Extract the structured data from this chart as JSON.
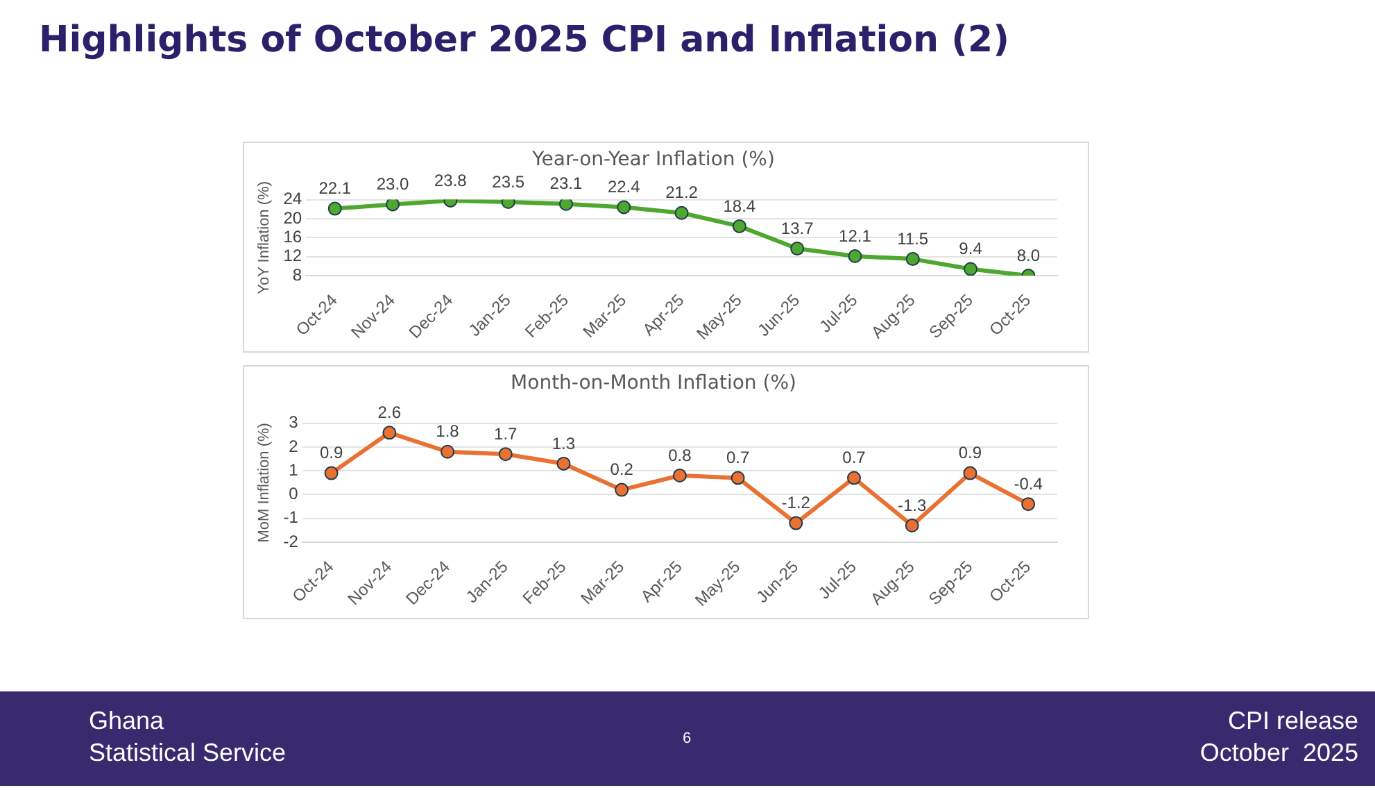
{
  "chart_data": [
    {
      "type": "line",
      "title": "Year-on-Year Inflation (%)",
      "ylabel": "YoY Inflation (%)",
      "categories": [
        "Oct-24",
        "Nov-24",
        "Dec-24",
        "Jan-25",
        "Feb-25",
        "Mar-25",
        "Apr-25",
        "May-25",
        "Jun-25",
        "Jul-25",
        "Aug-25",
        "Sep-25",
        "Oct-25"
      ],
      "series": [
        {
          "color": "#4ea72e",
          "values": [
            22.1,
            23.0,
            23.8,
            23.5,
            23.1,
            22.4,
            21.2,
            18.4,
            13.7,
            12.1,
            11.5,
            9.4,
            8.0
          ],
          "value_labels": [
            "22.1",
            "23.0",
            "23.8",
            "23.5",
            "23.1",
            "22.4",
            "21.2",
            "18.4",
            "13.7",
            "12.1",
            "11.5",
            "9.4",
            "8.0"
          ]
        }
      ],
      "ylim": [
        8,
        24
      ],
      "yticks": [
        8,
        12,
        16,
        20,
        24
      ],
      "grid": "y",
      "marker": "circle",
      "annotations": [
        "Highlights of October 2025 CPI and Inflation (2)"
      ]
    },
    {
      "type": "line",
      "title": "Month-on-Month Inflation (%)",
      "ylabel": "MoM Inflation (%)",
      "categories": [
        "Oct-24",
        "Nov-24",
        "Dec-24",
        "Jan-25",
        "Feb-25",
        "Mar-25",
        "Apr-25",
        "May-25",
        "Jun-25",
        "Jul-25",
        "Aug-25",
        "Sep-25",
        "Oct-25"
      ],
      "series": [
        {
          "color": "#e97132",
          "values": [
            0.9,
            2.6,
            1.8,
            1.7,
            1.3,
            0.2,
            0.8,
            0.7,
            -1.2,
            0.7,
            -1.3,
            0.9,
            -0.4
          ],
          "value_labels": [
            "0.9",
            "2.6",
            "1.8",
            "1.7",
            "1.3",
            "0.2",
            "0.8",
            "0.7",
            "-1.2",
            "0.7",
            "-1.3",
            "0.9",
            "-0.4"
          ]
        }
      ],
      "ylim": [
        -2,
        3
      ],
      "yticks": [
        -2,
        -1,
        0,
        1,
        2,
        3
      ],
      "grid": "y",
      "marker": "circle",
      "annotations": [
        "Ghana\nStatistical Service",
        "6",
        "CPI release\nOctober  2025"
      ]
    }
  ]
}
